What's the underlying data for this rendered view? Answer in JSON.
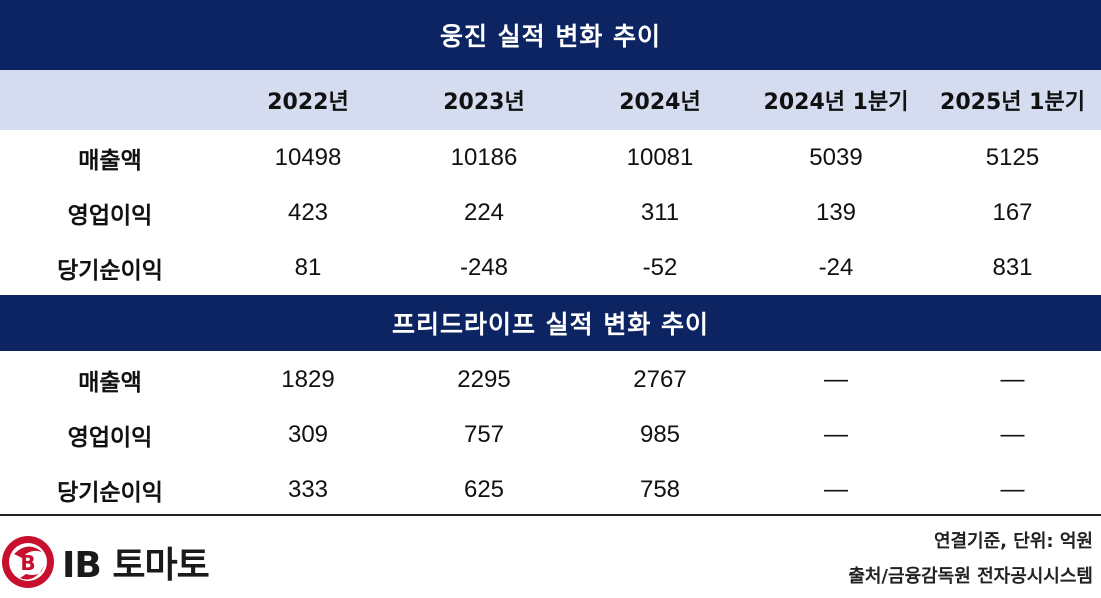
{
  "chart_data": {
    "type": "table",
    "columns": [
      "2022년",
      "2023년",
      "2024년",
      "2024년 1분기",
      "2025년 1분기"
    ],
    "tables": [
      {
        "title": "웅진 실적 변화 추이",
        "rows": [
          {
            "label": "매출액",
            "values": [
              "10498",
              "10186",
              "10081",
              "5039",
              "5125"
            ]
          },
          {
            "label": "영업이익",
            "values": [
              "423",
              "224",
              "311",
              "139",
              "167"
            ]
          },
          {
            "label": "당기순이익",
            "values": [
              "81",
              "-248",
              "-52",
              "-24",
              "831"
            ]
          }
        ]
      },
      {
        "title": "프리드라이프 실적 변화 추이",
        "rows": [
          {
            "label": "매출액",
            "values": [
              "1829",
              "2295",
              "2767",
              "—",
              "—"
            ]
          },
          {
            "label": "영업이익",
            "values": [
              "309",
              "757",
              "985",
              "—",
              "—"
            ]
          },
          {
            "label": "당기순이익",
            "values": [
              "333",
              "625",
              "758",
              "—",
              "—"
            ]
          }
        ]
      }
    ]
  },
  "footer": {
    "unit_note": "연결기준, 단위: 억원",
    "source_note": "출처/금융감독원 전자공시시스템",
    "logo_text": "IB 토마토"
  },
  "colors": {
    "header_band": "#0c2461",
    "year_row_bg": "#d6dcef",
    "logo_red": "#c8102e"
  }
}
